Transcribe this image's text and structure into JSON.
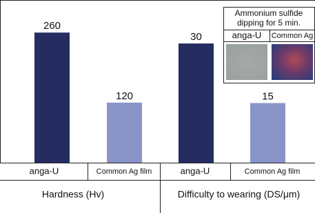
{
  "chart_data": [
    {
      "type": "bar",
      "x_label": "Hardness (Hv)",
      "categories": [
        "anga-U",
        "Common Ag film"
      ],
      "values": [
        260,
        120
      ],
      "colors": [
        "#252c60",
        "#8b94c9"
      ],
      "ylim": [
        0,
        270
      ]
    },
    {
      "type": "bar",
      "x_label": "Difficulty to wearing (DS/μm)",
      "categories": [
        "anga-U",
        "Common Ag film"
      ],
      "values": [
        30,
        15
      ],
      "colors": [
        "#252c60",
        "#8b94c9"
      ],
      "ylim": [
        0,
        34
      ]
    }
  ],
  "inset": {
    "title_lines": [
      "Ammonium sulfide",
      "dipping for 5 min."
    ],
    "columns": [
      "anga-U",
      "Common Ag"
    ]
  }
}
